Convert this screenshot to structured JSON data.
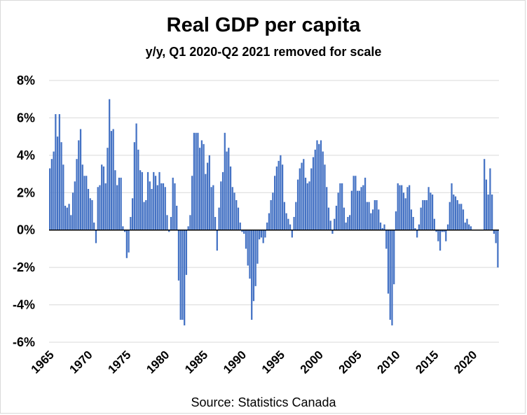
{
  "chart_data": {
    "type": "bar",
    "title": "Real GDP per capita",
    "subtitle": "y/y, Q1 2020-Q2 2021 removed for scale",
    "source": "Source: Statistics Canada",
    "xlabel": "",
    "ylabel": "",
    "ylim": [
      -6,
      8
    ],
    "y_ticks": [
      8,
      6,
      4,
      2,
      0,
      -2,
      -4,
      -6
    ],
    "y_tick_labels": [
      "8%",
      "6%",
      "4%",
      "2%",
      "0%",
      "-2%",
      "-4%",
      "-6%"
    ],
    "x_tick_labels": [
      "1965",
      "1970",
      "1975",
      "1980",
      "1985",
      "1990",
      "1995",
      "2000",
      "2005",
      "2010",
      "2015",
      "2020"
    ],
    "grid": true,
    "bar_color": "#4472c4",
    "series": [
      {
        "points": [
          {
            "x": "1965 Q1",
            "y": 3.3
          },
          {
            "x": "1965 Q2",
            "y": 3.8
          },
          {
            "x": "1965 Q3",
            "y": 4.2
          },
          {
            "x": "1965 Q4",
            "y": 6.2
          },
          {
            "x": "1966 Q1",
            "y": 5.0
          },
          {
            "x": "1966 Q2",
            "y": 6.2
          },
          {
            "x": "1966 Q3",
            "y": 4.7
          },
          {
            "x": "1966 Q4",
            "y": 3.5
          },
          {
            "x": "1967 Q1",
            "y": 1.3
          },
          {
            "x": "1967 Q2",
            "y": 1.2
          },
          {
            "x": "1967 Q3",
            "y": 1.4
          },
          {
            "x": "1967 Q4",
            "y": 0.8
          },
          {
            "x": "1968 Q1",
            "y": 2.0
          },
          {
            "x": "1968 Q2",
            "y": 2.6
          },
          {
            "x": "1968 Q3",
            "y": 3.8
          },
          {
            "x": "1968 Q4",
            "y": 4.8
          },
          {
            "x": "1969 Q1",
            "y": 5.4
          },
          {
            "x": "1969 Q2",
            "y": 3.5
          },
          {
            "x": "1969 Q3",
            "y": 2.9
          },
          {
            "x": "1969 Q4",
            "y": 2.9
          },
          {
            "x": "1970 Q1",
            "y": 2.2
          },
          {
            "x": "1970 Q2",
            "y": 1.7
          },
          {
            "x": "1970 Q3",
            "y": 1.6
          },
          {
            "x": "1970 Q4",
            "y": 0.4
          },
          {
            "x": "1971 Q1",
            "y": -0.7
          },
          {
            "x": "1971 Q2",
            "y": 2.3
          },
          {
            "x": "1971 Q3",
            "y": 2.4
          },
          {
            "x": "1971 Q4",
            "y": 3.5
          },
          {
            "x": "1972 Q1",
            "y": 3.4
          },
          {
            "x": "1972 Q2",
            "y": 2.5
          },
          {
            "x": "1972 Q3",
            "y": 4.4
          },
          {
            "x": "1972 Q4",
            "y": 7.0
          },
          {
            "x": "1973 Q1",
            "y": 5.3
          },
          {
            "x": "1973 Q2",
            "y": 5.4
          },
          {
            "x": "1973 Q3",
            "y": 3.2
          },
          {
            "x": "1973 Q4",
            "y": 2.4
          },
          {
            "x": "1974 Q1",
            "y": 2.8
          },
          {
            "x": "1974 Q2",
            "y": 2.8
          },
          {
            "x": "1974 Q3",
            "y": 0.2
          },
          {
            "x": "1974 Q4",
            "y": -0.1
          },
          {
            "x": "1975 Q1",
            "y": -1.5
          },
          {
            "x": "1975 Q2",
            "y": -1.2
          },
          {
            "x": "1975 Q3",
            "y": 0.7
          },
          {
            "x": "1975 Q4",
            "y": 1.7
          },
          {
            "x": "1976 Q1",
            "y": 4.7
          },
          {
            "x": "1976 Q2",
            "y": 5.7
          },
          {
            "x": "1976 Q3",
            "y": 4.3
          },
          {
            "x": "1976 Q4",
            "y": 3.2
          },
          {
            "x": "1977 Q1",
            "y": 3.1
          },
          {
            "x": "1977 Q2",
            "y": 1.5
          },
          {
            "x": "1977 Q3",
            "y": 1.6
          },
          {
            "x": "1977 Q4",
            "y": 3.1
          },
          {
            "x": "1978 Q1",
            "y": 2.6
          },
          {
            "x": "1978 Q2",
            "y": 2.2
          },
          {
            "x": "1978 Q3",
            "y": 3.1
          },
          {
            "x": "1978 Q4",
            "y": 2.9
          },
          {
            "x": "1979 Q1",
            "y": 2.4
          },
          {
            "x": "1979 Q2",
            "y": 3.1
          },
          {
            "x": "1979 Q3",
            "y": 2.5
          },
          {
            "x": "1979 Q4",
            "y": 2.5
          },
          {
            "x": "1980 Q1",
            "y": 2.3
          },
          {
            "x": "1980 Q2",
            "y": 0.8
          },
          {
            "x": "1980 Q3",
            "y": -0.1
          },
          {
            "x": "1980 Q4",
            "y": 0.7
          },
          {
            "x": "1981 Q1",
            "y": 2.8
          },
          {
            "x": "1981 Q2",
            "y": 2.5
          },
          {
            "x": "1981 Q3",
            "y": 1.3
          },
          {
            "x": "1981 Q4",
            "y": -2.7
          },
          {
            "x": "1982 Q1",
            "y": -4.8
          },
          {
            "x": "1982 Q2",
            "y": -4.8
          },
          {
            "x": "1982 Q3",
            "y": -5.1
          },
          {
            "x": "1982 Q4",
            "y": -2.4
          },
          {
            "x": "1983 Q1",
            "y": 0.2
          },
          {
            "x": "1983 Q2",
            "y": 0.8
          },
          {
            "x": "1983 Q3",
            "y": 2.9
          },
          {
            "x": "1983 Q4",
            "y": 5.2
          },
          {
            "x": "1984 Q1",
            "y": 5.2
          },
          {
            "x": "1984 Q2",
            "y": 5.2
          },
          {
            "x": "1984 Q3",
            "y": 4.4
          },
          {
            "x": "1984 Q4",
            "y": 4.8
          },
          {
            "x": "1985 Q1",
            "y": 4.6
          },
          {
            "x": "1985 Q2",
            "y": 3.0
          },
          {
            "x": "1985 Q3",
            "y": 3.6
          },
          {
            "x": "1985 Q4",
            "y": 4.0
          },
          {
            "x": "1986 Q1",
            "y": 2.3
          },
          {
            "x": "1986 Q2",
            "y": 2.4
          },
          {
            "x": "1986 Q3",
            "y": 0.7
          },
          {
            "x": "1986 Q4",
            "y": -1.1
          },
          {
            "x": "1987 Q1",
            "y": 1.2
          },
          {
            "x": "1987 Q2",
            "y": 2.6
          },
          {
            "x": "1987 Q3",
            "y": 3.1
          },
          {
            "x": "1987 Q4",
            "y": 5.2
          },
          {
            "x": "1988 Q1",
            "y": 4.2
          },
          {
            "x": "1988 Q2",
            "y": 4.4
          },
          {
            "x": "1988 Q3",
            "y": 3.4
          },
          {
            "x": "1988 Q4",
            "y": 2.3
          },
          {
            "x": "1989 Q1",
            "y": 2.0
          },
          {
            "x": "1989 Q2",
            "y": 1.6
          },
          {
            "x": "1989 Q3",
            "y": 1.2
          },
          {
            "x": "1989 Q4",
            "y": 0.4
          },
          {
            "x": "1990 Q1",
            "y": -0.1
          },
          {
            "x": "1990 Q2",
            "y": -0.2
          },
          {
            "x": "1990 Q3",
            "y": -1.0
          },
          {
            "x": "1990 Q4",
            "y": -1.9
          },
          {
            "x": "1991 Q1",
            "y": -2.6
          },
          {
            "x": "1991 Q2",
            "y": -4.8
          },
          {
            "x": "1991 Q3",
            "y": -3.8
          },
          {
            "x": "1991 Q4",
            "y": -3.0
          },
          {
            "x": "1992 Q1",
            "y": -1.8
          },
          {
            "x": "1992 Q2",
            "y": -0.5
          },
          {
            "x": "1992 Q3",
            "y": -0.4
          },
          {
            "x": "1992 Q4",
            "y": -0.7
          },
          {
            "x": "1993 Q1",
            "y": -0.4
          },
          {
            "x": "1993 Q2",
            "y": 0.4
          },
          {
            "x": "1993 Q3",
            "y": 0.9
          },
          {
            "x": "1993 Q4",
            "y": 1.6
          },
          {
            "x": "1994 Q1",
            "y": 2.0
          },
          {
            "x": "1994 Q2",
            "y": 2.9
          },
          {
            "x": "1994 Q3",
            "y": 3.4
          },
          {
            "x": "1994 Q4",
            "y": 3.7
          },
          {
            "x": "1995 Q1",
            "y": 4.0
          },
          {
            "x": "1995 Q2",
            "y": 3.5
          },
          {
            "x": "1995 Q3",
            "y": 1.5
          },
          {
            "x": "1995 Q4",
            "y": 0.9
          },
          {
            "x": "1996 Q1",
            "y": 0.6
          },
          {
            "x": "1996 Q2",
            "y": 0.3
          },
          {
            "x": "1996 Q3",
            "y": -0.4
          },
          {
            "x": "1996 Q4",
            "y": 0.7
          },
          {
            "x": "1997 Q1",
            "y": 1.5
          },
          {
            "x": "1997 Q2",
            "y": 2.7
          },
          {
            "x": "1997 Q3",
            "y": 3.3
          },
          {
            "x": "1997 Q4",
            "y": 3.6
          },
          {
            "x": "1998 Q1",
            "y": 3.8
          },
          {
            "x": "1998 Q2",
            "y": 2.8
          },
          {
            "x": "1998 Q3",
            "y": 2.5
          },
          {
            "x": "1998 Q4",
            "y": 2.6
          },
          {
            "x": "1999 Q1",
            "y": 3.3
          },
          {
            "x": "1999 Q2",
            "y": 3.9
          },
          {
            "x": "1999 Q3",
            "y": 4.3
          },
          {
            "x": "1999 Q4",
            "y": 4.8
          },
          {
            "x": "2000 Q1",
            "y": 4.6
          },
          {
            "x": "2000 Q2",
            "y": 4.8
          },
          {
            "x": "2000 Q3",
            "y": 4.2
          },
          {
            "x": "2000 Q4",
            "y": 3.5
          },
          {
            "x": "2001 Q1",
            "y": 2.3
          },
          {
            "x": "2001 Q2",
            "y": 1.2
          },
          {
            "x": "2001 Q3",
            "y": 0.5
          },
          {
            "x": "2001 Q4",
            "y": -0.2
          },
          {
            "x": "2002 Q1",
            "y": 0.6
          },
          {
            "x": "2002 Q2",
            "y": 1.3
          },
          {
            "x": "2002 Q3",
            "y": 2.0
          },
          {
            "x": "2002 Q4",
            "y": 2.5
          },
          {
            "x": "2003 Q1",
            "y": 2.5
          },
          {
            "x": "2003 Q2",
            "y": 1.2
          },
          {
            "x": "2003 Q3",
            "y": 0.4
          },
          {
            "x": "2003 Q4",
            "y": 0.7
          },
          {
            "x": "2004 Q1",
            "y": 0.8
          },
          {
            "x": "2004 Q2",
            "y": 2.1
          },
          {
            "x": "2004 Q3",
            "y": 2.9
          },
          {
            "x": "2004 Q4",
            "y": 2.9
          },
          {
            "x": "2005 Q1",
            "y": 2.1
          },
          {
            "x": "2005 Q2",
            "y": 2.1
          },
          {
            "x": "2005 Q3",
            "y": 2.3
          },
          {
            "x": "2005 Q4",
            "y": 2.4
          },
          {
            "x": "2006 Q1",
            "y": 2.8
          },
          {
            "x": "2006 Q2",
            "y": 1.5
          },
          {
            "x": "2006 Q3",
            "y": 1.5
          },
          {
            "x": "2006 Q4",
            "y": 0.9
          },
          {
            "x": "2007 Q1",
            "y": 1.1
          },
          {
            "x": "2007 Q2",
            "y": 1.6
          },
          {
            "x": "2007 Q3",
            "y": 1.6
          },
          {
            "x": "2007 Q4",
            "y": 1.1
          },
          {
            "x": "2008 Q1",
            "y": 0.4
          },
          {
            "x": "2008 Q2",
            "y": 0.1
          },
          {
            "x": "2008 Q3",
            "y": 0.3
          },
          {
            "x": "2008 Q4",
            "y": -1.0
          },
          {
            "x": "2009 Q1",
            "y": -3.4
          },
          {
            "x": "2009 Q2",
            "y": -4.8
          },
          {
            "x": "2009 Q3",
            "y": -5.1
          },
          {
            "x": "2009 Q4",
            "y": -2.9
          },
          {
            "x": "2010 Q1",
            "y": 1.0
          },
          {
            "x": "2010 Q2",
            "y": 2.5
          },
          {
            "x": "2010 Q3",
            "y": 2.4
          },
          {
            "x": "2010 Q4",
            "y": 2.4
          },
          {
            "x": "2011 Q1",
            "y": 2.0
          },
          {
            "x": "2011 Q2",
            "y": 1.7
          },
          {
            "x": "2011 Q3",
            "y": 2.3
          },
          {
            "x": "2011 Q4",
            "y": 2.4
          },
          {
            "x": "2012 Q1",
            "y": 1.1
          },
          {
            "x": "2012 Q2",
            "y": 0.7
          },
          {
            "x": "2012 Q3",
            "y": 0.1
          },
          {
            "x": "2012 Q4",
            "y": -0.4
          },
          {
            "x": "2013 Q1",
            "y": 0.3
          },
          {
            "x": "2013 Q2",
            "y": 1.2
          },
          {
            "x": "2013 Q3",
            "y": 1.6
          },
          {
            "x": "2013 Q4",
            "y": 1.6
          },
          {
            "x": "2014 Q1",
            "y": 1.6
          },
          {
            "x": "2014 Q2",
            "y": 2.3
          },
          {
            "x": "2014 Q3",
            "y": 2.0
          },
          {
            "x": "2014 Q4",
            "y": 1.9
          },
          {
            "x": "2015 Q1",
            "y": 0.6
          },
          {
            "x": "2015 Q2",
            "y": -0.1
          },
          {
            "x": "2015 Q3",
            "y": -0.6
          },
          {
            "x": "2015 Q4",
            "y": -1.1
          },
          {
            "x": "2016 Q1",
            "y": -0.1
          },
          {
            "x": "2016 Q2",
            "y": -0.1
          },
          {
            "x": "2016 Q3",
            "y": -0.6
          },
          {
            "x": "2016 Q4",
            "y": 0.3
          },
          {
            "x": "2017 Q1",
            "y": 1.5
          },
          {
            "x": "2017 Q2",
            "y": 2.5
          },
          {
            "x": "2017 Q3",
            "y": 1.9
          },
          {
            "x": "2017 Q4",
            "y": 1.8
          },
          {
            "x": "2018 Q1",
            "y": 1.6
          },
          {
            "x": "2018 Q2",
            "y": 1.4
          },
          {
            "x": "2018 Q3",
            "y": 1.4
          },
          {
            "x": "2018 Q4",
            "y": 1.1
          },
          {
            "x": "2019 Q1",
            "y": 0.4
          },
          {
            "x": "2019 Q2",
            "y": 0.6
          },
          {
            "x": "2019 Q3",
            "y": 0.3
          },
          {
            "x": "2019 Q4",
            "y": 0.2
          },
          {
            "x": "2021 Q3",
            "y": 3.8
          },
          {
            "x": "2021 Q4",
            "y": 2.7
          },
          {
            "x": "2022 Q1",
            "y": 1.9
          },
          {
            "x": "2022 Q2",
            "y": 3.3
          },
          {
            "x": "2022 Q3",
            "y": 1.9
          },
          {
            "x": "2022 Q4",
            "y": -0.2
          },
          {
            "x": "2023 Q1",
            "y": -0.7
          },
          {
            "x": "2023 Q2",
            "y": -2.0
          }
        ]
      }
    ]
  }
}
